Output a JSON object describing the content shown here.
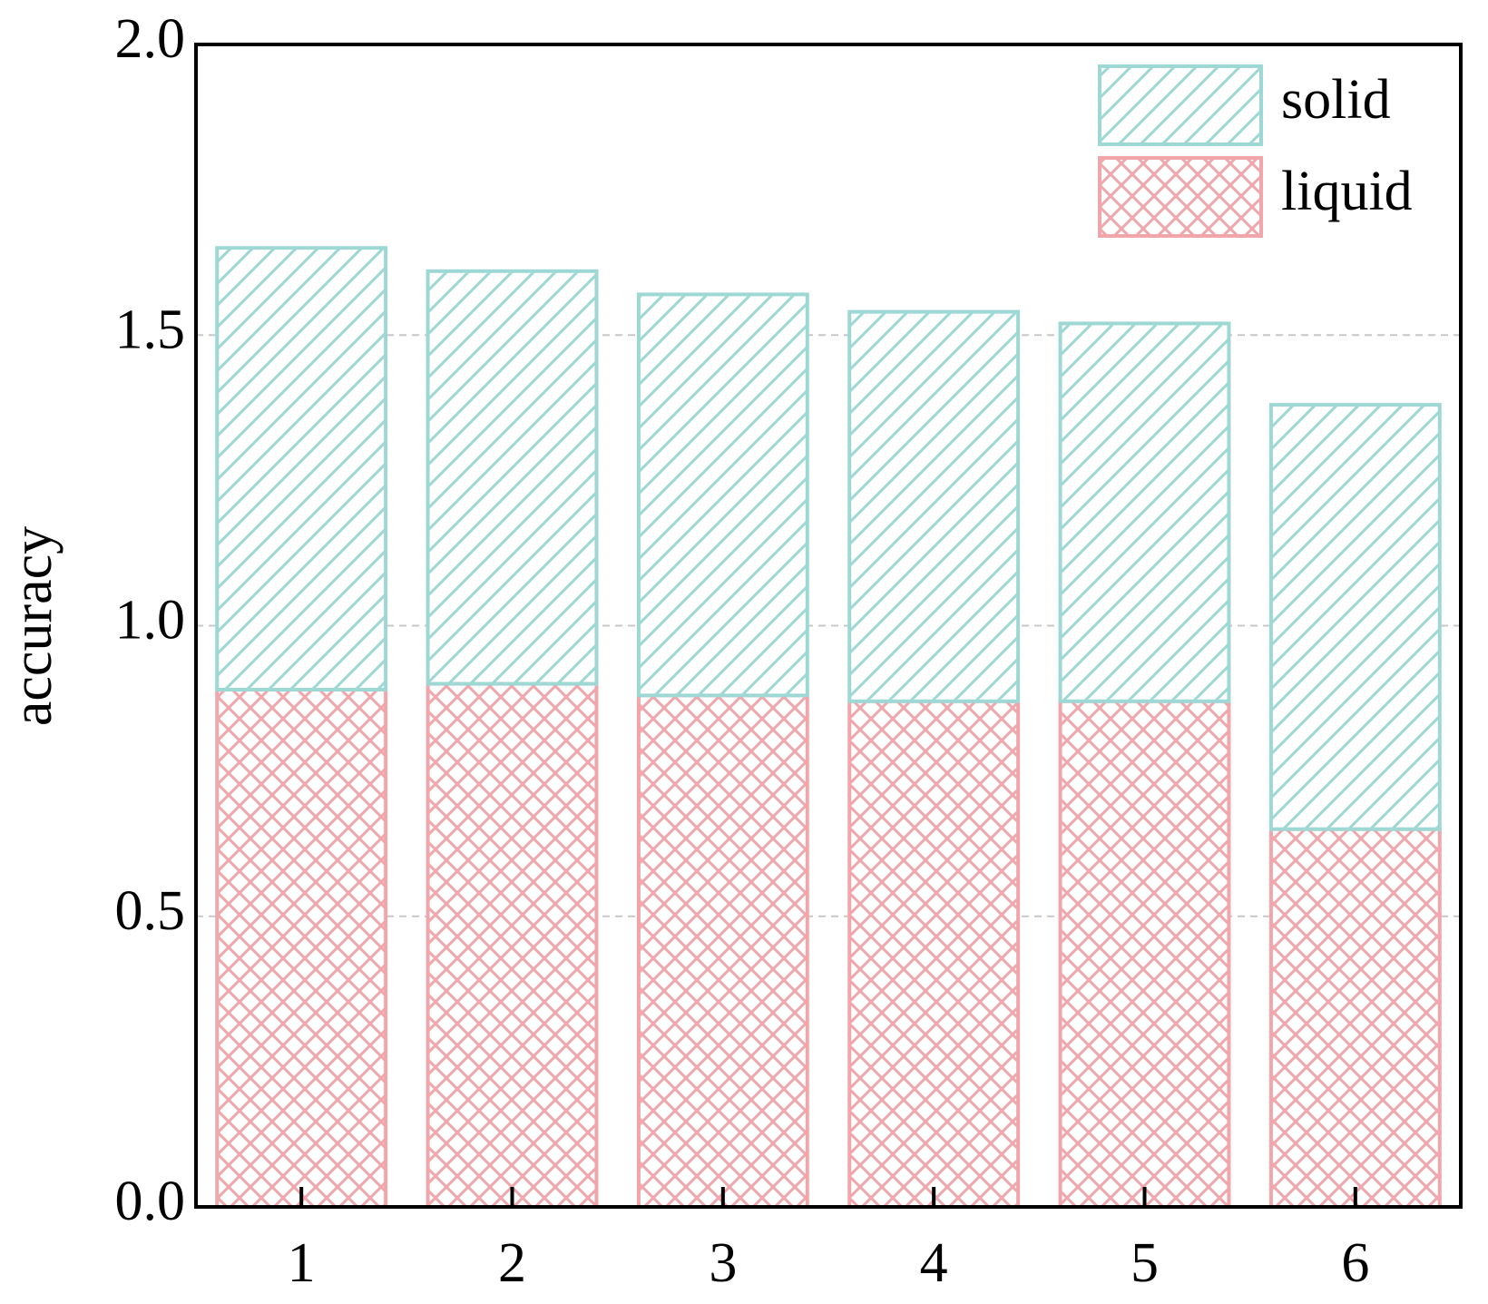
{
  "chart_data": {
    "type": "stacked-bar",
    "y_label": "accuracy",
    "categories": [
      "1",
      "2",
      "3",
      "4",
      "5",
      "6"
    ],
    "series": [
      {
        "name": "liquid",
        "color": "#f0a6ab",
        "hatch": "cross",
        "values": [
          0.89,
          0.9,
          0.88,
          0.87,
          0.87,
          0.65
        ]
      },
      {
        "name": "solid",
        "color": "#9ed8d4",
        "hatch": "diagonal",
        "values": [
          0.76,
          0.71,
          0.69,
          0.67,
          0.65,
          0.73
        ]
      }
    ],
    "ylim": [
      0,
      2
    ],
    "yticks": [
      {
        "value": 0,
        "label": "0.0"
      },
      {
        "value": 0.5,
        "label": "0.5"
      },
      {
        "value": 1,
        "label": "1.0"
      },
      {
        "value": 1.5,
        "label": "1.5"
      },
      {
        "value": 2,
        "label": "2.0"
      }
    ],
    "grid": true,
    "legend": "upper right"
  }
}
